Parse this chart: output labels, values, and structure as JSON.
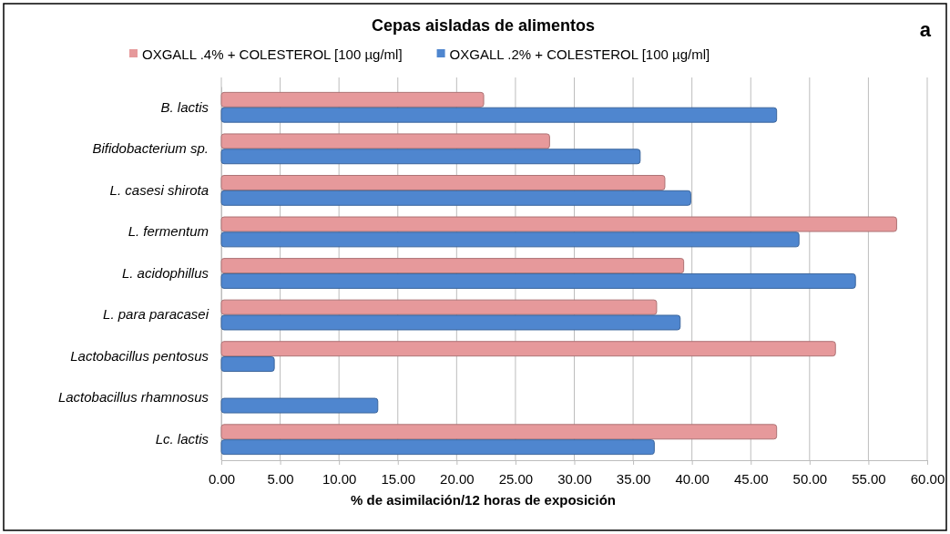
{
  "chart_data": {
    "type": "bar",
    "orientation": "horizontal",
    "title": "Cepas aisladas de alimentos",
    "xlabel": "% de asimilación/12 horas de exposición",
    "annotations": [
      "a"
    ],
    "categories": [
      "B. lactis",
      "Bifidobacterium sp.",
      "L. casesi shirota",
      "L. fermentum",
      "L. acidophillus",
      "L. para paracasei",
      "Lactobacillus pentosus",
      "Lactobacillus rhamnosus",
      "Lc. lactis"
    ],
    "series": [
      {
        "name": "OXGALL .4% + COLESTEROL [100 µg/ml]",
        "color": "#e6999b",
        "values": [
          22.3,
          27.9,
          37.7,
          57.4,
          39.3,
          37.0,
          52.2,
          0,
          47.2
        ]
      },
      {
        "name": "OXGALL .2% + COLESTEROL [100 µg/ml]",
        "color": "#4f86cf",
        "values": [
          47.2,
          35.6,
          39.9,
          49.1,
          53.9,
          39.0,
          4.5,
          13.3,
          36.8
        ]
      }
    ],
    "xlim": [
      0,
      60
    ],
    "xticks": [
      {
        "value": 0,
        "label": "0.00"
      },
      {
        "value": 5,
        "label": "5.00"
      },
      {
        "value": 10,
        "label": "10.00"
      },
      {
        "value": 15,
        "label": "15.00"
      },
      {
        "value": 20,
        "label": "20.00"
      },
      {
        "value": 25,
        "label": "25.00"
      },
      {
        "value": 30,
        "label": "30.00"
      },
      {
        "value": 35,
        "label": "35.00"
      },
      {
        "value": 40,
        "label": "40.00"
      },
      {
        "value": 45,
        "label": "45.00"
      },
      {
        "value": 50,
        "label": "50.00"
      },
      {
        "value": 55,
        "label": "55.00"
      },
      {
        "value": 60,
        "label": "60.00"
      }
    ],
    "grid": "x",
    "legend": "top"
  }
}
